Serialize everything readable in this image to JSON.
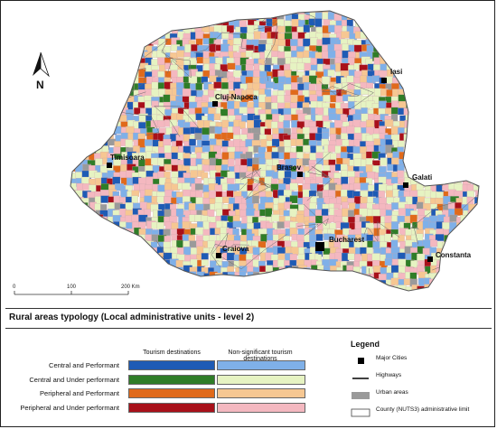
{
  "map": {
    "cities": [
      {
        "name": "Iasi"
      },
      {
        "name": "Cluj-Napoca"
      },
      {
        "name": "Timisoara"
      },
      {
        "name": "Brasov"
      },
      {
        "name": "Galati"
      },
      {
        "name": "Bucharest"
      },
      {
        "name": "Craiova"
      },
      {
        "name": "Constanta"
      }
    ],
    "north_label": "N",
    "scale": {
      "ticks": [
        "0",
        "100",
        "200 Km"
      ]
    }
  },
  "title": "Rural areas typology (Local administrative units - level 2)",
  "typology": {
    "column_headers": [
      "Tourism destinations",
      "Non-significant tourism destinations"
    ],
    "rows": [
      {
        "label": "Central and Performant",
        "tourism_color": "#1e5bb5",
        "nonsig_color": "#7fb0e8"
      },
      {
        "label": "Central and Under performant",
        "tourism_color": "#2f7d27",
        "nonsig_color": "#e6f3c2"
      },
      {
        "label": "Peripheral and Performant",
        "tourism_color": "#e06a1b",
        "nonsig_color": "#f6c792"
      },
      {
        "label": "Peripheral and Under performant",
        "tourism_color": "#a8101a",
        "nonsig_color": "#f4b8c0"
      }
    ]
  },
  "legend": {
    "title": "Legend",
    "items": [
      {
        "label": "Major Cities",
        "symbol": "black-square-icon"
      },
      {
        "label": "Highways",
        "symbol": "line-icon"
      },
      {
        "label": "Urban areas",
        "symbol": "grey-fill-icon",
        "color": "#9a9a9a"
      },
      {
        "label": "County (NUTS3) administrative limit",
        "symbol": "outline-box-icon"
      }
    ]
  }
}
